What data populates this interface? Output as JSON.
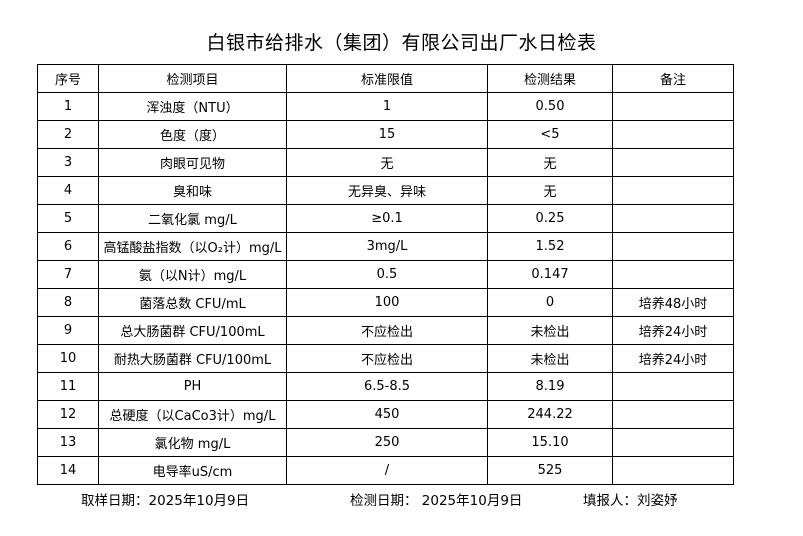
{
  "title": "白银市给排水（集团）有限公司出厂水日检表",
  "headers": [
    "序号",
    "检测项目",
    "标准限值",
    "检测结果",
    "备注"
  ],
  "rows": [
    [
      "1",
      "浑浊度（NTU）",
      "1",
      "0.50",
      ""
    ],
    [
      "2",
      "色度（度）",
      "15",
      "<5",
      ""
    ],
    [
      "3",
      "肉眼可见物",
      "无",
      "无",
      ""
    ],
    [
      "4",
      "臭和味",
      "无异臭、异味",
      "无",
      ""
    ],
    [
      "5",
      "二氧化氯 mg/L",
      "≥0.1",
      "0.25",
      ""
    ],
    [
      "6",
      "高锰酸盐指数（以O₂计）mg/L",
      "3mg/L",
      "1.52",
      ""
    ],
    [
      "7",
      "氨（以N计）mg/L",
      "0.5",
      "0.147",
      ""
    ],
    [
      "8",
      "菌落总数 CFU/mL",
      "100",
      "0",
      "培养48小时"
    ],
    [
      "9",
      "总大肠菌群 CFU/100mL",
      "不应检出",
      "未检出",
      "培养24小时"
    ],
    [
      "10",
      "耐热大肠菌群 CFU/100mL",
      "不应检出",
      "未检出",
      "培养24小时"
    ],
    [
      "11",
      "PH",
      "6.5-8.5",
      "8.19",
      ""
    ],
    [
      "12",
      "总硬度（以CaCo3计）mg/L",
      "450",
      "244.22",
      ""
    ],
    [
      "13",
      "氯化物 mg/L",
      "250",
      "15.10",
      ""
    ],
    [
      "14",
      "电导率uS/cm",
      "/",
      "525",
      ""
    ]
  ],
  "footer": {
    "sample_date": "取样日期：2025年10月9日",
    "test_date": "检测日期： 2025年10月9日",
    "reporter": "填报人：刘姿妤"
  }
}
